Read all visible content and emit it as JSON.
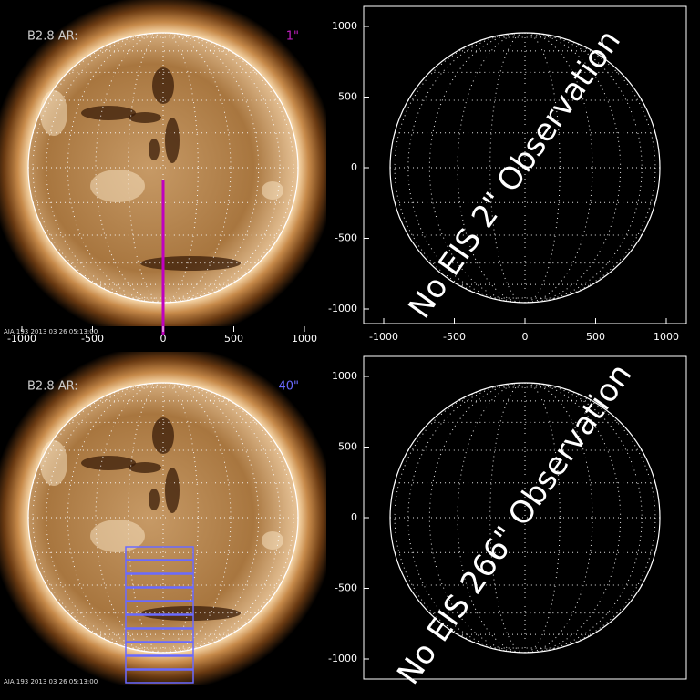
{
  "panels": [
    {
      "label": "B2.8 AR:",
      "slit": "1\"",
      "timestamp": "AIA 193 2013 03 26 05:13:00",
      "xticks": [
        -1000,
        -500,
        0,
        500,
        1000
      ]
    },
    {
      "message": "No EIS 2\" Observation",
      "xticks": [
        -1000,
        -500,
        0,
        500,
        1000
      ],
      "yticks": [
        1000,
        500,
        0,
        -500,
        -1000
      ]
    },
    {
      "label": "B2.8 AR:",
      "slit": "40\"",
      "timestamp": "AIA 193 2013 03 26 05:13:00"
    },
    {
      "message": "No EIS 266\" Observation",
      "yticks": [
        1000,
        500,
        0,
        -500,
        -1000
      ]
    }
  ]
}
